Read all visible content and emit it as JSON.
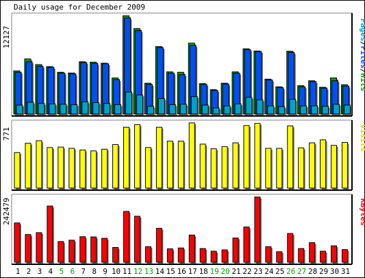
{
  "chart_data": [
    {
      "type": "bar",
      "title": "Daily usage for December 2009",
      "ylabel": "Pages/Files/Hits",
      "ylabel_parts": [
        "Pages",
        "/",
        "Files",
        "/",
        "Hits"
      ],
      "ylabel_colors": [
        "#00a2c8",
        "#000000",
        "#0050f0",
        "#000000",
        "#00a000"
      ],
      "ymax": 12127,
      "ymax_label": "12127",
      "categories": [
        "1",
        "2",
        "3",
        "4",
        "5",
        "6",
        "7",
        "8",
        "9",
        "10",
        "11",
        "12",
        "13",
        "14",
        "15",
        "16",
        "17",
        "18",
        "19",
        "20",
        "21",
        "22",
        "23",
        "24",
        "25",
        "26",
        "27",
        "28",
        "29",
        "30",
        "31"
      ],
      "series": [
        {
          "name": "Hits",
          "color": "#00a000",
          "values": [
            5320,
            6800,
            6100,
            5850,
            5150,
            5060,
            6450,
            6400,
            6270,
            4450,
            12127,
            10550,
            3800,
            8330,
            5200,
            5150,
            8750,
            3750,
            3000,
            3800,
            5200,
            8050,
            7780,
            4300,
            3350,
            7750,
            3500,
            4100,
            3300,
            4450,
            3600
          ]
        },
        {
          "name": "Files",
          "color": "#0050f0",
          "values": [
            5150,
            6450,
            5900,
            5750,
            5050,
            4950,
            6350,
            6250,
            6200,
            4250,
            11850,
            10300,
            3650,
            8200,
            5050,
            4850,
            8450,
            3650,
            2900,
            3700,
            5050,
            7950,
            7700,
            4200,
            3250,
            7600,
            3350,
            4000,
            3200,
            4100,
            3450
          ]
        },
        {
          "name": "Pages",
          "color": "#00a2c8",
          "values": [
            1100,
            1450,
            1300,
            1250,
            1200,
            1150,
            1500,
            1400,
            1300,
            1150,
            2700,
            2350,
            950,
            1900,
            1150,
            1200,
            2150,
            1100,
            750,
            1000,
            1250,
            2050,
            1750,
            1000,
            900,
            1800,
            1000,
            1000,
            950,
            1200,
            1100
          ]
        }
      ]
    },
    {
      "type": "bar",
      "ylabel": "Visits",
      "ylabel_color": "#d8d800",
      "ymax": 771,
      "ymax_label": "771",
      "categories": [
        "1",
        "2",
        "3",
        "4",
        "5",
        "6",
        "7",
        "8",
        "9",
        "10",
        "11",
        "12",
        "13",
        "14",
        "15",
        "16",
        "17",
        "18",
        "19",
        "20",
        "21",
        "22",
        "23",
        "24",
        "25",
        "26",
        "27",
        "28",
        "29",
        "30",
        "31"
      ],
      "series": [
        {
          "name": "Visits",
          "color": "#ffff00",
          "values": [
            420,
            530,
            560,
            480,
            485,
            470,
            450,
            440,
            460,
            515,
            720,
            750,
            480,
            720,
            555,
            555,
            771,
            520,
            465,
            490,
            535,
            740,
            765,
            470,
            470,
            735,
            475,
            535,
            570,
            505,
            540
          ]
        }
      ]
    },
    {
      "type": "bar",
      "ylabel": "KBytes",
      "ylabel_color": "#ff0000",
      "ymax": 242479,
      "ymax_label": "242479",
      "categories": [
        "1",
        "2",
        "3",
        "4",
        "5",
        "6",
        "7",
        "8",
        "9",
        "10",
        "11",
        "12",
        "13",
        "14",
        "15",
        "16",
        "17",
        "18",
        "19",
        "20",
        "21",
        "22",
        "23",
        "24",
        "25",
        "26",
        "27",
        "28",
        "29",
        "30",
        "31"
      ],
      "series": [
        {
          "name": "KBytes",
          "color": "#ff0000",
          "values": [
            146000,
            103000,
            110000,
            209000,
            77000,
            82000,
            95000,
            94000,
            89000,
            55000,
            189000,
            171000,
            58000,
            126000,
            50000,
            53000,
            101000,
            51000,
            41000,
            46000,
            90000,
            131000,
            242479,
            58000,
            39000,
            107000,
            51000,
            73000,
            41000,
            61000,
            47000
          ]
        }
      ]
    }
  ],
  "weekend_days": [
    "5",
    "6",
    "12",
    "13",
    "19",
    "20",
    "26",
    "27"
  ],
  "colors": {
    "weekday_label": "#000000",
    "weekend_label": "#00a000",
    "frame": "#000000"
  }
}
